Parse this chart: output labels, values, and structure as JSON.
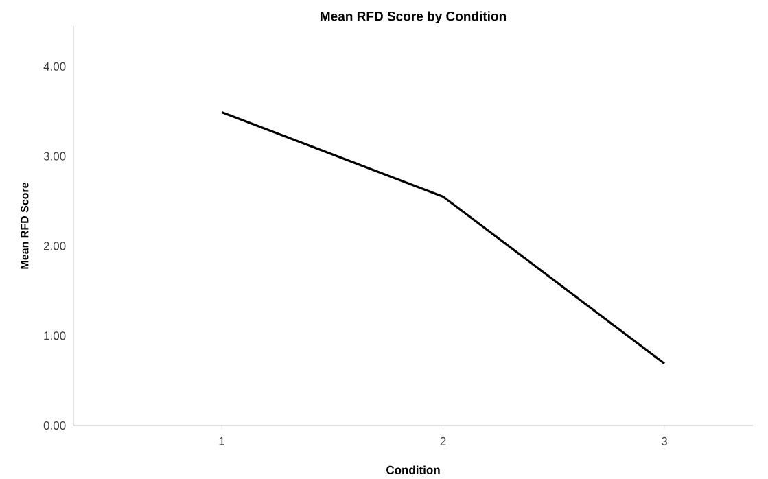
{
  "chart_data": {
    "type": "line",
    "title": "Mean RFD Score by Condition",
    "xlabel": "Condition",
    "ylabel": "Mean RFD Score",
    "categories": [
      "1",
      "2",
      "3"
    ],
    "values": [
      3.49,
      2.55,
      0.69
    ],
    "color": "#000000",
    "ylim": [
      0,
      4.45
    ],
    "yticks": [
      {
        "value": 0,
        "label": "0.00"
      },
      {
        "value": 1,
        "label": "1.00"
      },
      {
        "value": 2,
        "label": "2.00"
      },
      {
        "value": 3,
        "label": "3.00"
      },
      {
        "value": 4,
        "label": "4.00"
      }
    ]
  }
}
